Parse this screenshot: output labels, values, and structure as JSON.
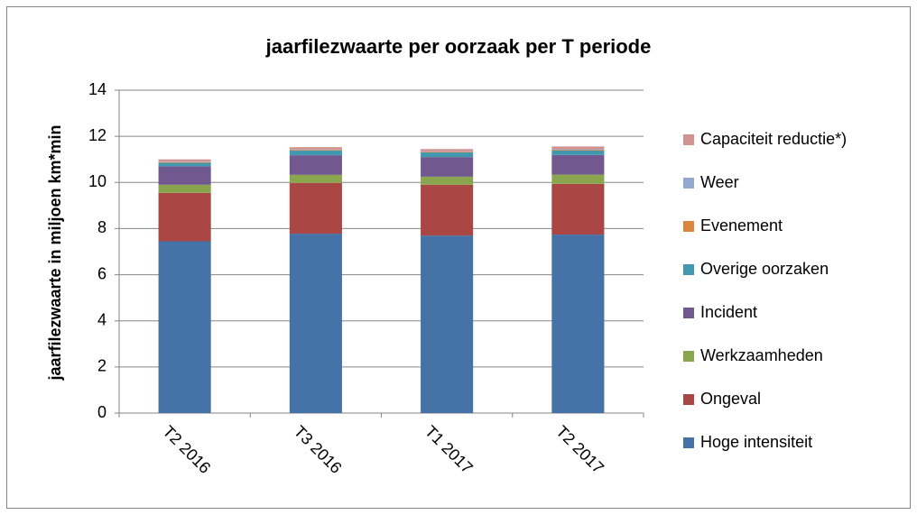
{
  "chart_data": {
    "type": "stacked_bar",
    "title": "jaarfilezwaarte per oorzaak per T periode",
    "y_label": "jaarfilezwaarte in miljoen km*min",
    "categories": [
      "T2 2016",
      "T3 2016",
      "T1 2017",
      "T2 2017"
    ],
    "series": [
      {
        "name": "Hoge intensiteit",
        "color": "#4572a7",
        "values": [
          7.45,
          7.78,
          7.7,
          7.74
        ]
      },
      {
        "name": "Ongeval",
        "color": "#aa4643",
        "values": [
          2.1,
          2.2,
          2.2,
          2.2
        ]
      },
      {
        "name": "Werkzaamheden",
        "color": "#89a54e",
        "values": [
          0.35,
          0.35,
          0.35,
          0.4
        ]
      },
      {
        "name": "Incident",
        "color": "#71588f",
        "values": [
          0.8,
          0.85,
          0.85,
          0.85
        ]
      },
      {
        "name": "Overige oorzaken",
        "color": "#4198af",
        "values": [
          0.15,
          0.2,
          0.2,
          0.2
        ]
      },
      {
        "name": "Evenement",
        "color": "#db843d",
        "values": [
          0.03,
          0.03,
          0.03,
          0.03
        ]
      },
      {
        "name": "Weer",
        "color": "#93a9cf",
        "values": [
          0.02,
          0.02,
          0.02,
          0.02
        ]
      },
      {
        "name": "Capaciteit reductie*)",
        "color": "#d19392",
        "values": [
          0.1,
          0.1,
          0.1,
          0.12
        ]
      }
    ],
    "ylim": [
      0,
      14
    ],
    "yticks": [
      0,
      2,
      4,
      6,
      8,
      10,
      12,
      14
    ],
    "grid": true,
    "legend": "right"
  }
}
